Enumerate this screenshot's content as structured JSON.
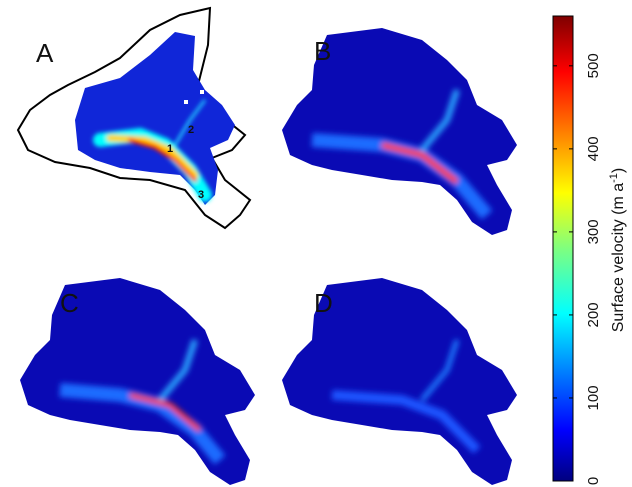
{
  "figure": {
    "panels": [
      {
        "letter": "A",
        "markers": [
          "1",
          "2",
          "3"
        ]
      },
      {
        "letter": "B"
      },
      {
        "letter": "C"
      },
      {
        "letter": "D"
      }
    ],
    "colorbar": {
      "label_main": "Surface velocity (m a",
      "label_sup": "-1",
      "label_end": ")",
      "min": 0,
      "max": 560,
      "ticks": [
        "0",
        "100",
        "200",
        "300",
        "400",
        "500"
      ],
      "colormap": "jet",
      "colors": [
        "#00007f",
        "#0000ff",
        "#007fff",
        "#00ffff",
        "#7fff7f",
        "#ffff00",
        "#ff7f00",
        "#ff0000",
        "#7f0000"
      ]
    }
  }
}
